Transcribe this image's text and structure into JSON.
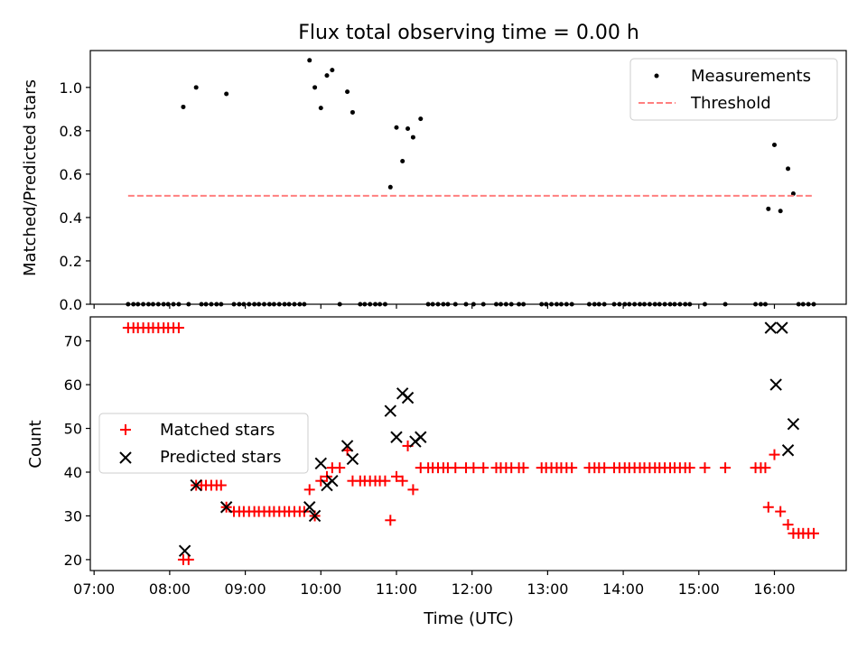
{
  "chart_data": [
    {
      "type": "scatter",
      "title": "Flux total observing time = 0.00 h",
      "xlabel": "",
      "ylabel": "Matched/Predicted stars",
      "xlim": [
        6.95,
        16.95
      ],
      "ylim": [
        0.0,
        1.17
      ],
      "yticks": [
        0.0,
        0.2,
        0.4,
        0.6,
        0.8,
        1.0
      ],
      "ytick_labels": [
        "0.0",
        "0.2",
        "0.4",
        "0.6",
        "0.8",
        "1.0"
      ],
      "legend": {
        "position": "top-right",
        "entries": [
          "Measurements",
          "Threshold"
        ]
      },
      "series": [
        {
          "name": "Measurements",
          "marker": "dot",
          "color": "#000000",
          "points": [
            [
              7.45,
              0
            ],
            [
              7.52,
              0
            ],
            [
              7.58,
              0
            ],
            [
              7.65,
              0
            ],
            [
              7.72,
              0
            ],
            [
              7.78,
              0
            ],
            [
              7.85,
              0
            ],
            [
              7.92,
              0
            ],
            [
              7.98,
              0
            ],
            [
              8.05,
              0
            ],
            [
              8.12,
              0
            ],
            [
              8.18,
              0.91
            ],
            [
              8.25,
              0
            ],
            [
              8.35,
              1.0
            ],
            [
              8.42,
              0
            ],
            [
              8.48,
              0
            ],
            [
              8.55,
              0
            ],
            [
              8.62,
              0
            ],
            [
              8.68,
              0
            ],
            [
              8.75,
              0.97
            ],
            [
              8.85,
              0
            ],
            [
              8.92,
              0
            ],
            [
              8.98,
              0
            ],
            [
              9.05,
              0
            ],
            [
              9.12,
              0
            ],
            [
              9.18,
              0
            ],
            [
              9.25,
              0
            ],
            [
              9.32,
              0
            ],
            [
              9.38,
              0
            ],
            [
              9.45,
              0
            ],
            [
              9.52,
              0
            ],
            [
              9.58,
              0
            ],
            [
              9.65,
              0
            ],
            [
              9.72,
              0
            ],
            [
              9.78,
              0
            ],
            [
              9.85,
              1.125
            ],
            [
              9.92,
              1.0
            ],
            [
              10.0,
              0.905
            ],
            [
              10.08,
              1.055
            ],
            [
              10.15,
              1.08
            ],
            [
              10.25,
              0
            ],
            [
              10.35,
              0.98
            ],
            [
              10.42,
              0.885
            ],
            [
              10.52,
              0
            ],
            [
              10.58,
              0
            ],
            [
              10.65,
              0
            ],
            [
              10.72,
              0
            ],
            [
              10.78,
              0
            ],
            [
              10.85,
              0
            ],
            [
              10.92,
              0.54
            ],
            [
              11.0,
              0.815
            ],
            [
              11.08,
              0.66
            ],
            [
              11.15,
              0.81
            ],
            [
              11.22,
              0.77
            ],
            [
              11.32,
              0.855
            ],
            [
              11.42,
              0
            ],
            [
              11.48,
              0
            ],
            [
              11.55,
              0
            ],
            [
              11.62,
              0
            ],
            [
              11.68,
              0
            ],
            [
              11.78,
              0
            ],
            [
              11.92,
              0
            ],
            [
              12.02,
              0
            ],
            [
              12.15,
              0
            ],
            [
              12.32,
              0
            ],
            [
              12.38,
              0
            ],
            [
              12.45,
              0
            ],
            [
              12.52,
              0
            ],
            [
              12.62,
              0
            ],
            [
              12.68,
              0
            ],
            [
              12.92,
              0
            ],
            [
              12.98,
              0
            ],
            [
              13.05,
              0
            ],
            [
              13.12,
              0
            ],
            [
              13.18,
              0
            ],
            [
              13.25,
              0
            ],
            [
              13.32,
              0
            ],
            [
              13.55,
              0
            ],
            [
              13.62,
              0
            ],
            [
              13.68,
              0
            ],
            [
              13.75,
              0
            ],
            [
              13.88,
              0
            ],
            [
              13.95,
              0
            ],
            [
              14.02,
              0
            ],
            [
              14.08,
              0
            ],
            [
              14.15,
              0
            ],
            [
              14.22,
              0
            ],
            [
              14.28,
              0
            ],
            [
              14.35,
              0
            ],
            [
              14.42,
              0
            ],
            [
              14.48,
              0
            ],
            [
              14.55,
              0
            ],
            [
              14.62,
              0
            ],
            [
              14.68,
              0
            ],
            [
              14.75,
              0
            ],
            [
              14.82,
              0
            ],
            [
              14.88,
              0
            ],
            [
              15.08,
              0
            ],
            [
              15.35,
              0
            ],
            [
              15.75,
              0
            ],
            [
              15.82,
              0
            ],
            [
              15.88,
              0
            ],
            [
              15.92,
              0.44
            ],
            [
              16.0,
              0.735
            ],
            [
              16.08,
              0.43
            ],
            [
              16.18,
              0.625
            ],
            [
              16.25,
              0.51
            ],
            [
              16.32,
              0
            ],
            [
              16.38,
              0
            ],
            [
              16.45,
              0
            ],
            [
              16.52,
              0
            ]
          ]
        },
        {
          "name": "Threshold",
          "marker": "dashed-line",
          "color": "#ff7f7f",
          "points": [
            [
              7.45,
              0.5
            ],
            [
              16.52,
              0.5
            ]
          ]
        }
      ]
    },
    {
      "type": "scatter",
      "title": "",
      "xlabel": "Time (UTC)",
      "ylabel": "Count",
      "xlim": [
        6.95,
        16.95
      ],
      "ylim": [
        17.5,
        75.5
      ],
      "yticks": [
        20,
        30,
        40,
        50,
        60,
        70
      ],
      "ytick_labels": [
        "20",
        "30",
        "40",
        "50",
        "60",
        "70"
      ],
      "xticks": [
        7,
        8,
        9,
        10,
        11,
        12,
        13,
        14,
        15,
        16
      ],
      "xtick_labels": [
        "07:00",
        "08:00",
        "09:00",
        "10:00",
        "11:00",
        "12:00",
        "13:00",
        "14:00",
        "15:00",
        "16:00"
      ],
      "legend": {
        "position": "center-left",
        "entries": [
          "Matched stars",
          "Predicted stars"
        ]
      },
      "series": [
        {
          "name": "Matched stars",
          "marker": "plus",
          "color": "#ff0000",
          "points": [
            [
              7.45,
              73
            ],
            [
              7.52,
              73
            ],
            [
              7.58,
              73
            ],
            [
              7.65,
              73
            ],
            [
              7.72,
              73
            ],
            [
              7.78,
              73
            ],
            [
              7.85,
              73
            ],
            [
              7.92,
              73
            ],
            [
              7.98,
              73
            ],
            [
              8.05,
              73
            ],
            [
              8.12,
              73
            ],
            [
              8.18,
              20
            ],
            [
              8.25,
              20
            ],
            [
              8.35,
              37
            ],
            [
              8.42,
              37
            ],
            [
              8.48,
              37
            ],
            [
              8.55,
              37
            ],
            [
              8.62,
              37
            ],
            [
              8.68,
              37
            ],
            [
              8.75,
              32
            ],
            [
              8.85,
              31
            ],
            [
              8.92,
              31
            ],
            [
              8.98,
              31
            ],
            [
              9.05,
              31
            ],
            [
              9.12,
              31
            ],
            [
              9.18,
              31
            ],
            [
              9.25,
              31
            ],
            [
              9.32,
              31
            ],
            [
              9.38,
              31
            ],
            [
              9.45,
              31
            ],
            [
              9.52,
              31
            ],
            [
              9.58,
              31
            ],
            [
              9.65,
              31
            ],
            [
              9.72,
              31
            ],
            [
              9.78,
              31
            ],
            [
              9.85,
              36
            ],
            [
              9.92,
              30
            ],
            [
              10.0,
              38
            ],
            [
              10.08,
              39
            ],
            [
              10.15,
              41
            ],
            [
              10.25,
              41
            ],
            [
              10.35,
              45
            ],
            [
              10.42,
              38
            ],
            [
              10.52,
              38
            ],
            [
              10.58,
              38
            ],
            [
              10.65,
              38
            ],
            [
              10.72,
              38
            ],
            [
              10.78,
              38
            ],
            [
              10.85,
              38
            ],
            [
              10.92,
              29
            ],
            [
              11.0,
              39
            ],
            [
              11.08,
              38
            ],
            [
              11.15,
              46
            ],
            [
              11.22,
              36
            ],
            [
              11.32,
              41
            ],
            [
              11.42,
              41
            ],
            [
              11.48,
              41
            ],
            [
              11.55,
              41
            ],
            [
              11.62,
              41
            ],
            [
              11.68,
              41
            ],
            [
              11.78,
              41
            ],
            [
              11.92,
              41
            ],
            [
              12.02,
              41
            ],
            [
              12.15,
              41
            ],
            [
              12.32,
              41
            ],
            [
              12.38,
              41
            ],
            [
              12.45,
              41
            ],
            [
              12.52,
              41
            ],
            [
              12.62,
              41
            ],
            [
              12.68,
              41
            ],
            [
              12.92,
              41
            ],
            [
              12.98,
              41
            ],
            [
              13.05,
              41
            ],
            [
              13.12,
              41
            ],
            [
              13.18,
              41
            ],
            [
              13.25,
              41
            ],
            [
              13.32,
              41
            ],
            [
              13.55,
              41
            ],
            [
              13.62,
              41
            ],
            [
              13.68,
              41
            ],
            [
              13.75,
              41
            ],
            [
              13.88,
              41
            ],
            [
              13.95,
              41
            ],
            [
              14.02,
              41
            ],
            [
              14.08,
              41
            ],
            [
              14.15,
              41
            ],
            [
              14.22,
              41
            ],
            [
              14.28,
              41
            ],
            [
              14.35,
              41
            ],
            [
              14.42,
              41
            ],
            [
              14.48,
              41
            ],
            [
              14.55,
              41
            ],
            [
              14.62,
              41
            ],
            [
              14.68,
              41
            ],
            [
              14.75,
              41
            ],
            [
              14.82,
              41
            ],
            [
              14.88,
              41
            ],
            [
              15.08,
              41
            ],
            [
              15.35,
              41
            ],
            [
              15.75,
              41
            ],
            [
              15.82,
              41
            ],
            [
              15.88,
              41
            ],
            [
              15.92,
              32
            ],
            [
              16.0,
              44
            ],
            [
              16.08,
              31
            ],
            [
              16.18,
              28
            ],
            [
              16.25,
              26
            ],
            [
              16.32,
              26
            ],
            [
              16.38,
              26
            ],
            [
              16.45,
              26
            ],
            [
              16.52,
              26
            ]
          ]
        },
        {
          "name": "Predicted stars",
          "marker": "x",
          "color": "#000000",
          "points": [
            [
              8.2,
              22
            ],
            [
              8.35,
              37
            ],
            [
              8.75,
              32
            ],
            [
              9.85,
              32
            ],
            [
              9.92,
              30
            ],
            [
              10.0,
              42
            ],
            [
              10.08,
              37
            ],
            [
              10.15,
              38
            ],
            [
              10.35,
              46
            ],
            [
              10.42,
              43
            ],
            [
              10.92,
              54
            ],
            [
              11.0,
              48
            ],
            [
              11.08,
              58
            ],
            [
              11.15,
              57
            ],
            [
              11.25,
              47
            ],
            [
              11.32,
              48
            ],
            [
              15.95,
              73
            ],
            [
              16.02,
              60
            ],
            [
              16.1,
              73
            ],
            [
              16.18,
              45
            ],
            [
              16.25,
              51
            ]
          ]
        }
      ]
    }
  ]
}
